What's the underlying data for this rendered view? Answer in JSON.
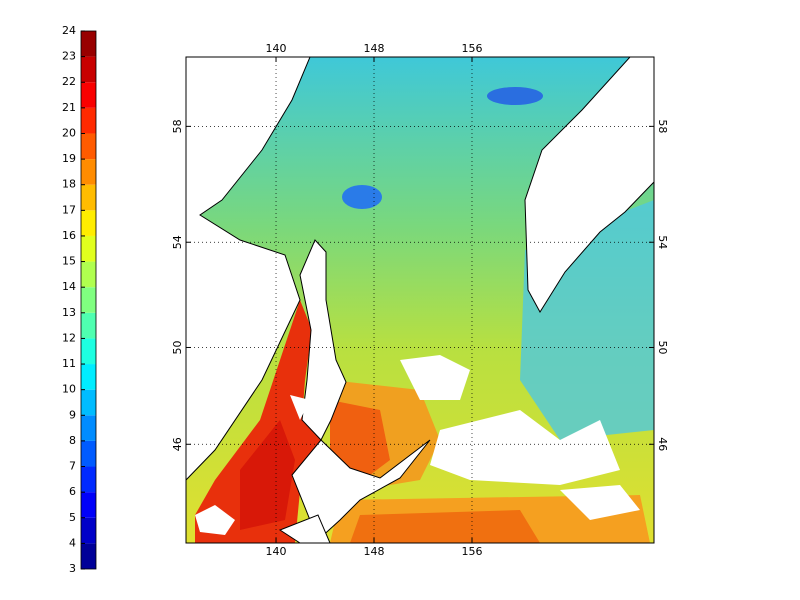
{
  "colorbar": {
    "range": [
      3,
      24
    ],
    "ticks": [
      3,
      4,
      5,
      6,
      7,
      8,
      9,
      10,
      11,
      12,
      13,
      14,
      15,
      16,
      17,
      18,
      19,
      20,
      21,
      22,
      23,
      24
    ]
  },
  "map": {
    "xlim": [
      132.65,
      170.86
    ],
    "ylim": [
      41.6,
      60.2
    ],
    "xticks": [
      140,
      148,
      156
    ],
    "yticks": [
      46,
      50,
      54,
      58
    ],
    "grid": true
  }
}
